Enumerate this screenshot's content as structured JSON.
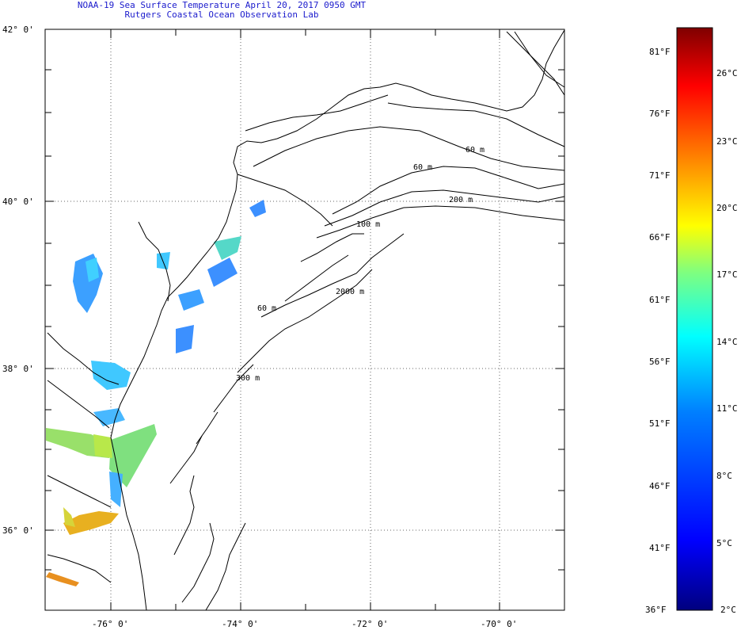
{
  "title": {
    "line1": "NOAA-19 Sea Surface Temperature April 20, 2017 0950 GMT",
    "line2": "Rutgers Coastal Ocean Observation Lab"
  },
  "axes": {
    "y_labels": [
      "42° 0'",
      "40° 0'",
      "38° 0'",
      "36° 0'"
    ],
    "y_values": [
      42,
      40,
      38,
      36
    ],
    "x_labels": [
      "-76° 0'",
      "-74° 0'",
      "-72° 0'",
      "-70° 0'"
    ],
    "x_values": [
      -76,
      -74,
      -72,
      -70
    ],
    "lon_range": [
      -77,
      -69
    ],
    "lat_range": [
      35,
      42.15
    ]
  },
  "contour_labels": [
    "60 m",
    "60 m",
    "100 m",
    "200 m",
    "2000 m",
    "300 m",
    "60 m"
  ],
  "colorbar": {
    "f_labels": [
      "81°F",
      "76°F",
      "71°F",
      "66°F",
      "61°F",
      "56°F",
      "51°F",
      "46°F",
      "41°F",
      "36°F"
    ],
    "f_values": [
      81,
      76,
      71,
      66,
      61,
      56,
      51,
      46,
      41,
      36
    ],
    "c_labels": [
      "26°C",
      "23°C",
      "20°C",
      "17°C",
      "14°C",
      "11°C",
      "8°C",
      "5°C",
      "2°C"
    ],
    "c_values": [
      26,
      23,
      20,
      17,
      14,
      11,
      8,
      5,
      2
    ],
    "range_f": [
      36,
      83
    ],
    "colors": [
      "#00007f",
      "#0000ff",
      "#007fff",
      "#00ffff",
      "#7fff7f",
      "#ffff00",
      "#ff7f00",
      "#ff0000",
      "#7f0000"
    ]
  }
}
